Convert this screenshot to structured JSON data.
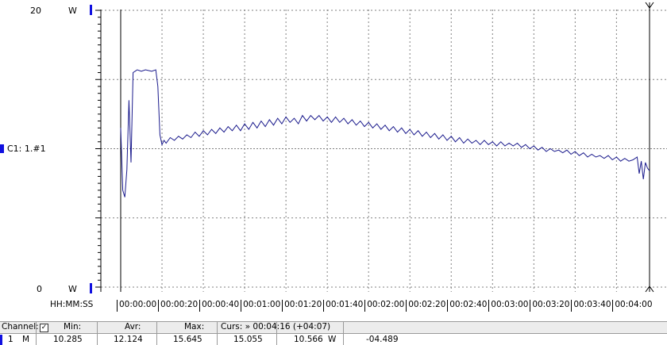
{
  "y_axis": {
    "max_label": "20",
    "min_label": "0",
    "unit_top": "W",
    "unit_bottom": "W"
  },
  "channel_label": "C1: 1.#1",
  "x_axis": {
    "format_label": "HH:MM:SS",
    "ticks": [
      "00:00:00",
      "00:00:20",
      "00:00:40",
      "00:01:00",
      "00:01:20",
      "00:01:40",
      "00:02:00",
      "00:02:20",
      "00:02:40",
      "00:03:00",
      "00:03:20",
      "00:03:40",
      "00:04:00"
    ]
  },
  "colors": {
    "trace": "#1a1a8c",
    "marker": "#1010e0",
    "grid": "#808080"
  },
  "table": {
    "headers": {
      "channel": "Channel:",
      "min": "Min:",
      "avr": "Avr:",
      "max": "Max:",
      "cursor": "Curs: » 00:04:16 (+04:07)"
    },
    "row": {
      "channel_no": "1",
      "mode": "M",
      "min": "10.285",
      "avr": "12.124",
      "max": "15.645",
      "curs_value": "15.055",
      "curs_value2": "10.566",
      "curs_unit": "W",
      "curs_delta": "-04.489"
    }
  },
  "chart_data": {
    "type": "line",
    "ylim": [
      0,
      20
    ],
    "xlim_seconds": [
      0,
      256
    ],
    "x_unit": "HH:MM:SS",
    "series": [
      {
        "values": [
          [
            0,
            11.5
          ],
          [
            1,
            7.0
          ],
          [
            2,
            6.5
          ],
          [
            3,
            8.5
          ],
          [
            4,
            13.5
          ],
          [
            5,
            9.0
          ],
          [
            6,
            15.5
          ],
          [
            7,
            15.6
          ],
          [
            8,
            15.7
          ],
          [
            10,
            15.6
          ],
          [
            12,
            15.7
          ],
          [
            15,
            15.6
          ],
          [
            17,
            15.7
          ],
          [
            18,
            14.5
          ],
          [
            19,
            11.0
          ],
          [
            20,
            10.3
          ],
          [
            21,
            10.6
          ],
          [
            22,
            10.4
          ],
          [
            24,
            10.8
          ],
          [
            26,
            10.6
          ],
          [
            28,
            10.9
          ],
          [
            30,
            10.7
          ],
          [
            32,
            11.0
          ],
          [
            34,
            10.8
          ],
          [
            36,
            11.2
          ],
          [
            38,
            10.9
          ],
          [
            40,
            11.3
          ],
          [
            42,
            11.0
          ],
          [
            44,
            11.4
          ],
          [
            46,
            11.1
          ],
          [
            48,
            11.5
          ],
          [
            50,
            11.2
          ],
          [
            52,
            11.6
          ],
          [
            54,
            11.3
          ],
          [
            56,
            11.7
          ],
          [
            58,
            11.3
          ],
          [
            60,
            11.8
          ],
          [
            62,
            11.4
          ],
          [
            64,
            11.9
          ],
          [
            66,
            11.5
          ],
          [
            68,
            12.0
          ],
          [
            70,
            11.6
          ],
          [
            72,
            12.1
          ],
          [
            74,
            11.7
          ],
          [
            76,
            12.2
          ],
          [
            78,
            11.8
          ],
          [
            80,
            12.3
          ],
          [
            82,
            11.9
          ],
          [
            84,
            12.2
          ],
          [
            86,
            11.8
          ],
          [
            88,
            12.4
          ],
          [
            90,
            12.0
          ],
          [
            92,
            12.4
          ],
          [
            94,
            12.1
          ],
          [
            96,
            12.4
          ],
          [
            98,
            12.0
          ],
          [
            100,
            12.3
          ],
          [
            102,
            11.9
          ],
          [
            104,
            12.3
          ],
          [
            106,
            11.9
          ],
          [
            108,
            12.2
          ],
          [
            110,
            11.8
          ],
          [
            112,
            12.1
          ],
          [
            114,
            11.7
          ],
          [
            116,
            12.0
          ],
          [
            118,
            11.6
          ],
          [
            120,
            11.9
          ],
          [
            122,
            11.5
          ],
          [
            124,
            11.8
          ],
          [
            126,
            11.4
          ],
          [
            128,
            11.7
          ],
          [
            130,
            11.3
          ],
          [
            132,
            11.6
          ],
          [
            134,
            11.2
          ],
          [
            136,
            11.5
          ],
          [
            138,
            11.1
          ],
          [
            140,
            11.4
          ],
          [
            142,
            11.0
          ],
          [
            144,
            11.3
          ],
          [
            146,
            10.9
          ],
          [
            148,
            11.2
          ],
          [
            150,
            10.8
          ],
          [
            152,
            11.1
          ],
          [
            154,
            10.7
          ],
          [
            156,
            11.0
          ],
          [
            158,
            10.6
          ],
          [
            160,
            10.9
          ],
          [
            162,
            10.5
          ],
          [
            164,
            10.8
          ],
          [
            166,
            10.4
          ],
          [
            168,
            10.7
          ],
          [
            170,
            10.4
          ],
          [
            172,
            10.6
          ],
          [
            174,
            10.3
          ],
          [
            176,
            10.6
          ],
          [
            178,
            10.3
          ],
          [
            180,
            10.5
          ],
          [
            182,
            10.2
          ],
          [
            184,
            10.5
          ],
          [
            186,
            10.2
          ],
          [
            188,
            10.4
          ],
          [
            190,
            10.2
          ],
          [
            192,
            10.4
          ],
          [
            194,
            10.1
          ],
          [
            196,
            10.3
          ],
          [
            198,
            10.0
          ],
          [
            200,
            10.2
          ],
          [
            202,
            9.9
          ],
          [
            204,
            10.1
          ],
          [
            206,
            9.8
          ],
          [
            208,
            10.0
          ],
          [
            210,
            9.8
          ],
          [
            212,
            9.9
          ],
          [
            214,
            9.7
          ],
          [
            216,
            9.9
          ],
          [
            218,
            9.6
          ],
          [
            220,
            9.8
          ],
          [
            222,
            9.5
          ],
          [
            224,
            9.7
          ],
          [
            226,
            9.4
          ],
          [
            228,
            9.6
          ],
          [
            230,
            9.4
          ],
          [
            232,
            9.5
          ],
          [
            234,
            9.3
          ],
          [
            236,
            9.5
          ],
          [
            238,
            9.2
          ],
          [
            240,
            9.4
          ],
          [
            242,
            9.1
          ],
          [
            244,
            9.3
          ],
          [
            246,
            9.1
          ],
          [
            248,
            9.2
          ],
          [
            250,
            9.4
          ],
          [
            251,
            8.2
          ],
          [
            252,
            9.1
          ],
          [
            253,
            7.8
          ],
          [
            254,
            9.0
          ],
          [
            255,
            8.6
          ],
          [
            256,
            8.4
          ]
        ]
      }
    ],
    "cursor_seconds": 256
  }
}
